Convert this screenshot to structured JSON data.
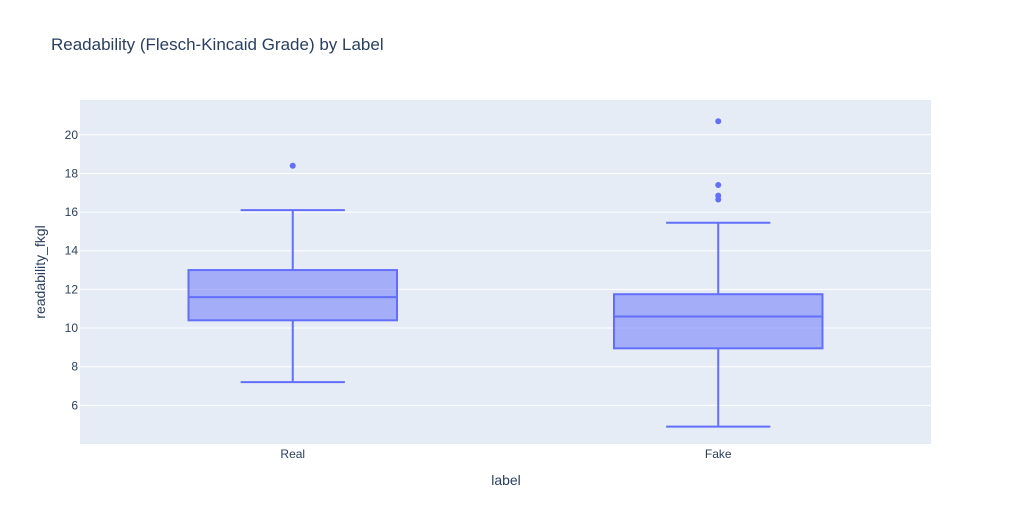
{
  "chart_data": {
    "type": "box",
    "title": "Readability (Flesch-Kincaid Grade) by Label",
    "xlabel": "label",
    "ylabel": "readability_fkgl",
    "categories": [
      "Real",
      "Fake"
    ],
    "ylim": [
      4.0,
      21.8
    ],
    "yticks": [
      6,
      8,
      10,
      12,
      14,
      16,
      18,
      20
    ],
    "grid": true,
    "legend": "none",
    "colors": {
      "plot_bg": "#e5ecf6",
      "grid": "#ffffff",
      "box_line": "#636efa",
      "box_fill": "rgba(99,110,250,0.5)",
      "text": "#2a3f5f"
    },
    "boxes": [
      {
        "category": "Real",
        "lower_whisker": 7.2,
        "q1": 10.4,
        "median": 11.6,
        "q3": 13.0,
        "upper_whisker": 16.1,
        "outliers": [
          18.4
        ]
      },
      {
        "category": "Fake",
        "lower_whisker": 4.9,
        "q1": 8.95,
        "median": 10.6,
        "q3": 11.75,
        "upper_whisker": 15.45,
        "outliers": [
          20.7,
          17.4,
          16.85,
          16.65
        ]
      }
    ]
  }
}
